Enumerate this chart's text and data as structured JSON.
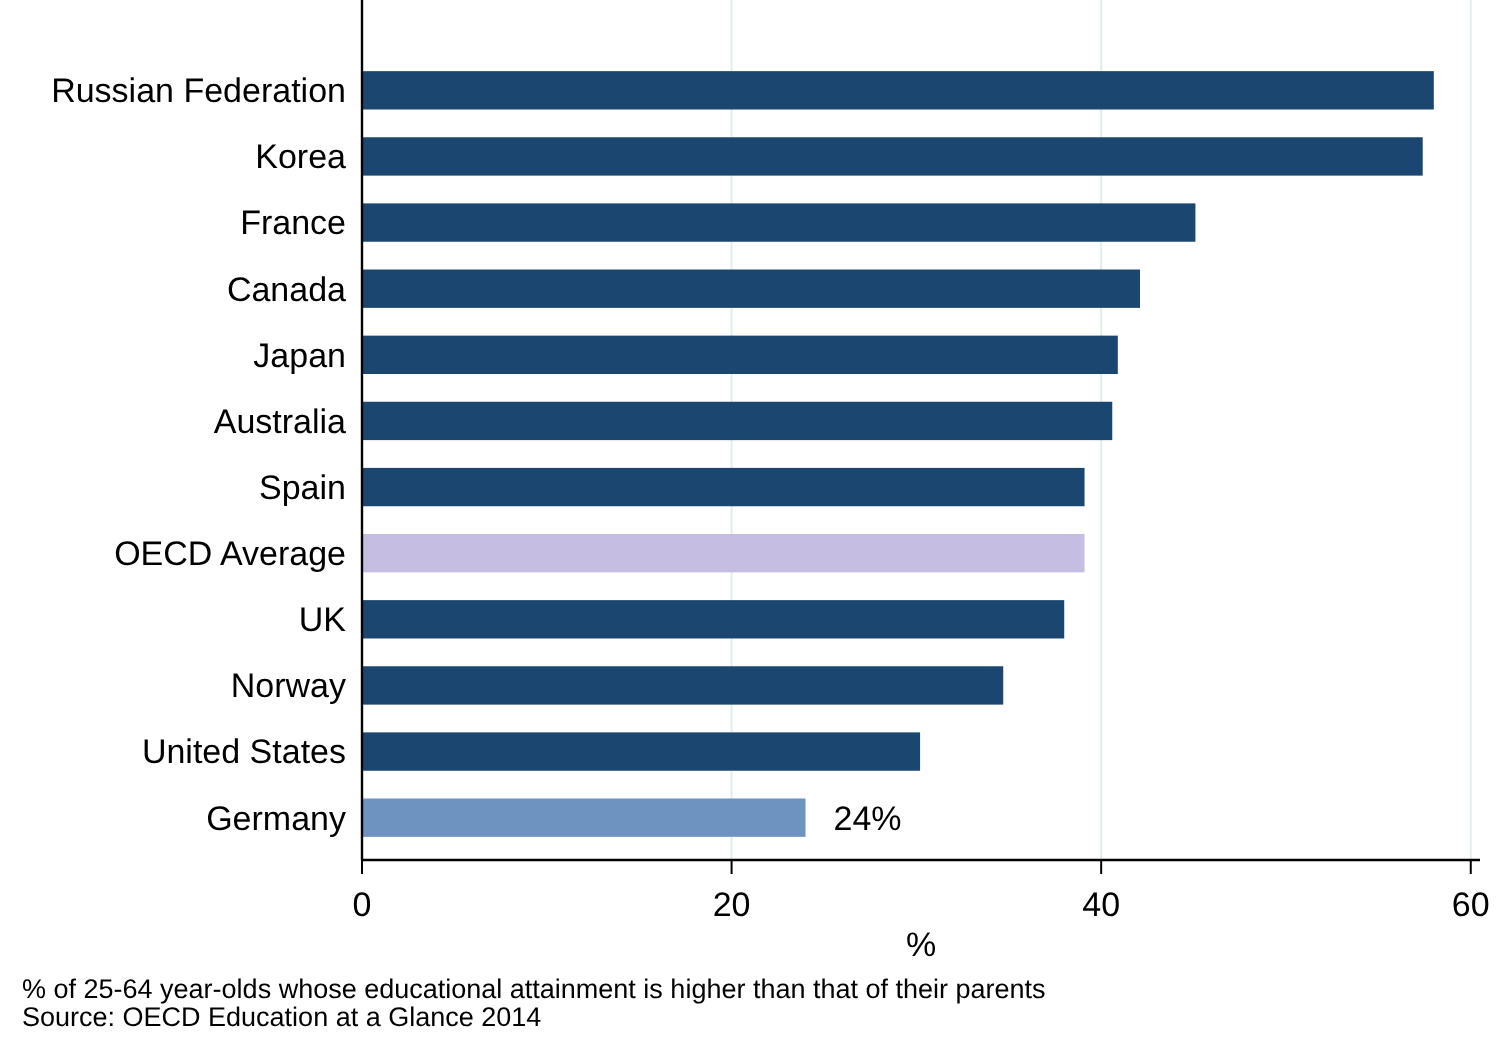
{
  "chart_data": {
    "type": "bar",
    "orientation": "horizontal",
    "xlabel": "%",
    "categories": [
      "Russian Federation",
      "Korea",
      "France",
      "Canada",
      "Japan",
      "Australia",
      "Spain",
      "OECD Average",
      "UK",
      "Norway",
      "United States",
      "Germany"
    ],
    "values": [
      58.0,
      57.4,
      45.1,
      42.1,
      40.9,
      40.6,
      39.1,
      39.1,
      38.0,
      34.7,
      30.2,
      24
    ],
    "colors": [
      "#1b466f",
      "#1b466f",
      "#1b466f",
      "#1b466f",
      "#1b466f",
      "#1b466f",
      "#1b466f",
      "#c6bde3",
      "#1b466f",
      "#1b466f",
      "#1b466f",
      "#6f93c0"
    ],
    "value_labels": [
      null,
      null,
      null,
      null,
      null,
      null,
      null,
      null,
      null,
      null,
      null,
      "24%"
    ],
    "xlim": [
      0,
      60.5
    ],
    "xticks": [
      0,
      20,
      40,
      60
    ],
    "grid": "x",
    "annotations": [
      "% of 25-64 year-olds whose educational attainment is higher than that of their parents",
      "Source: OECD Education at a Glance 2014"
    ]
  }
}
